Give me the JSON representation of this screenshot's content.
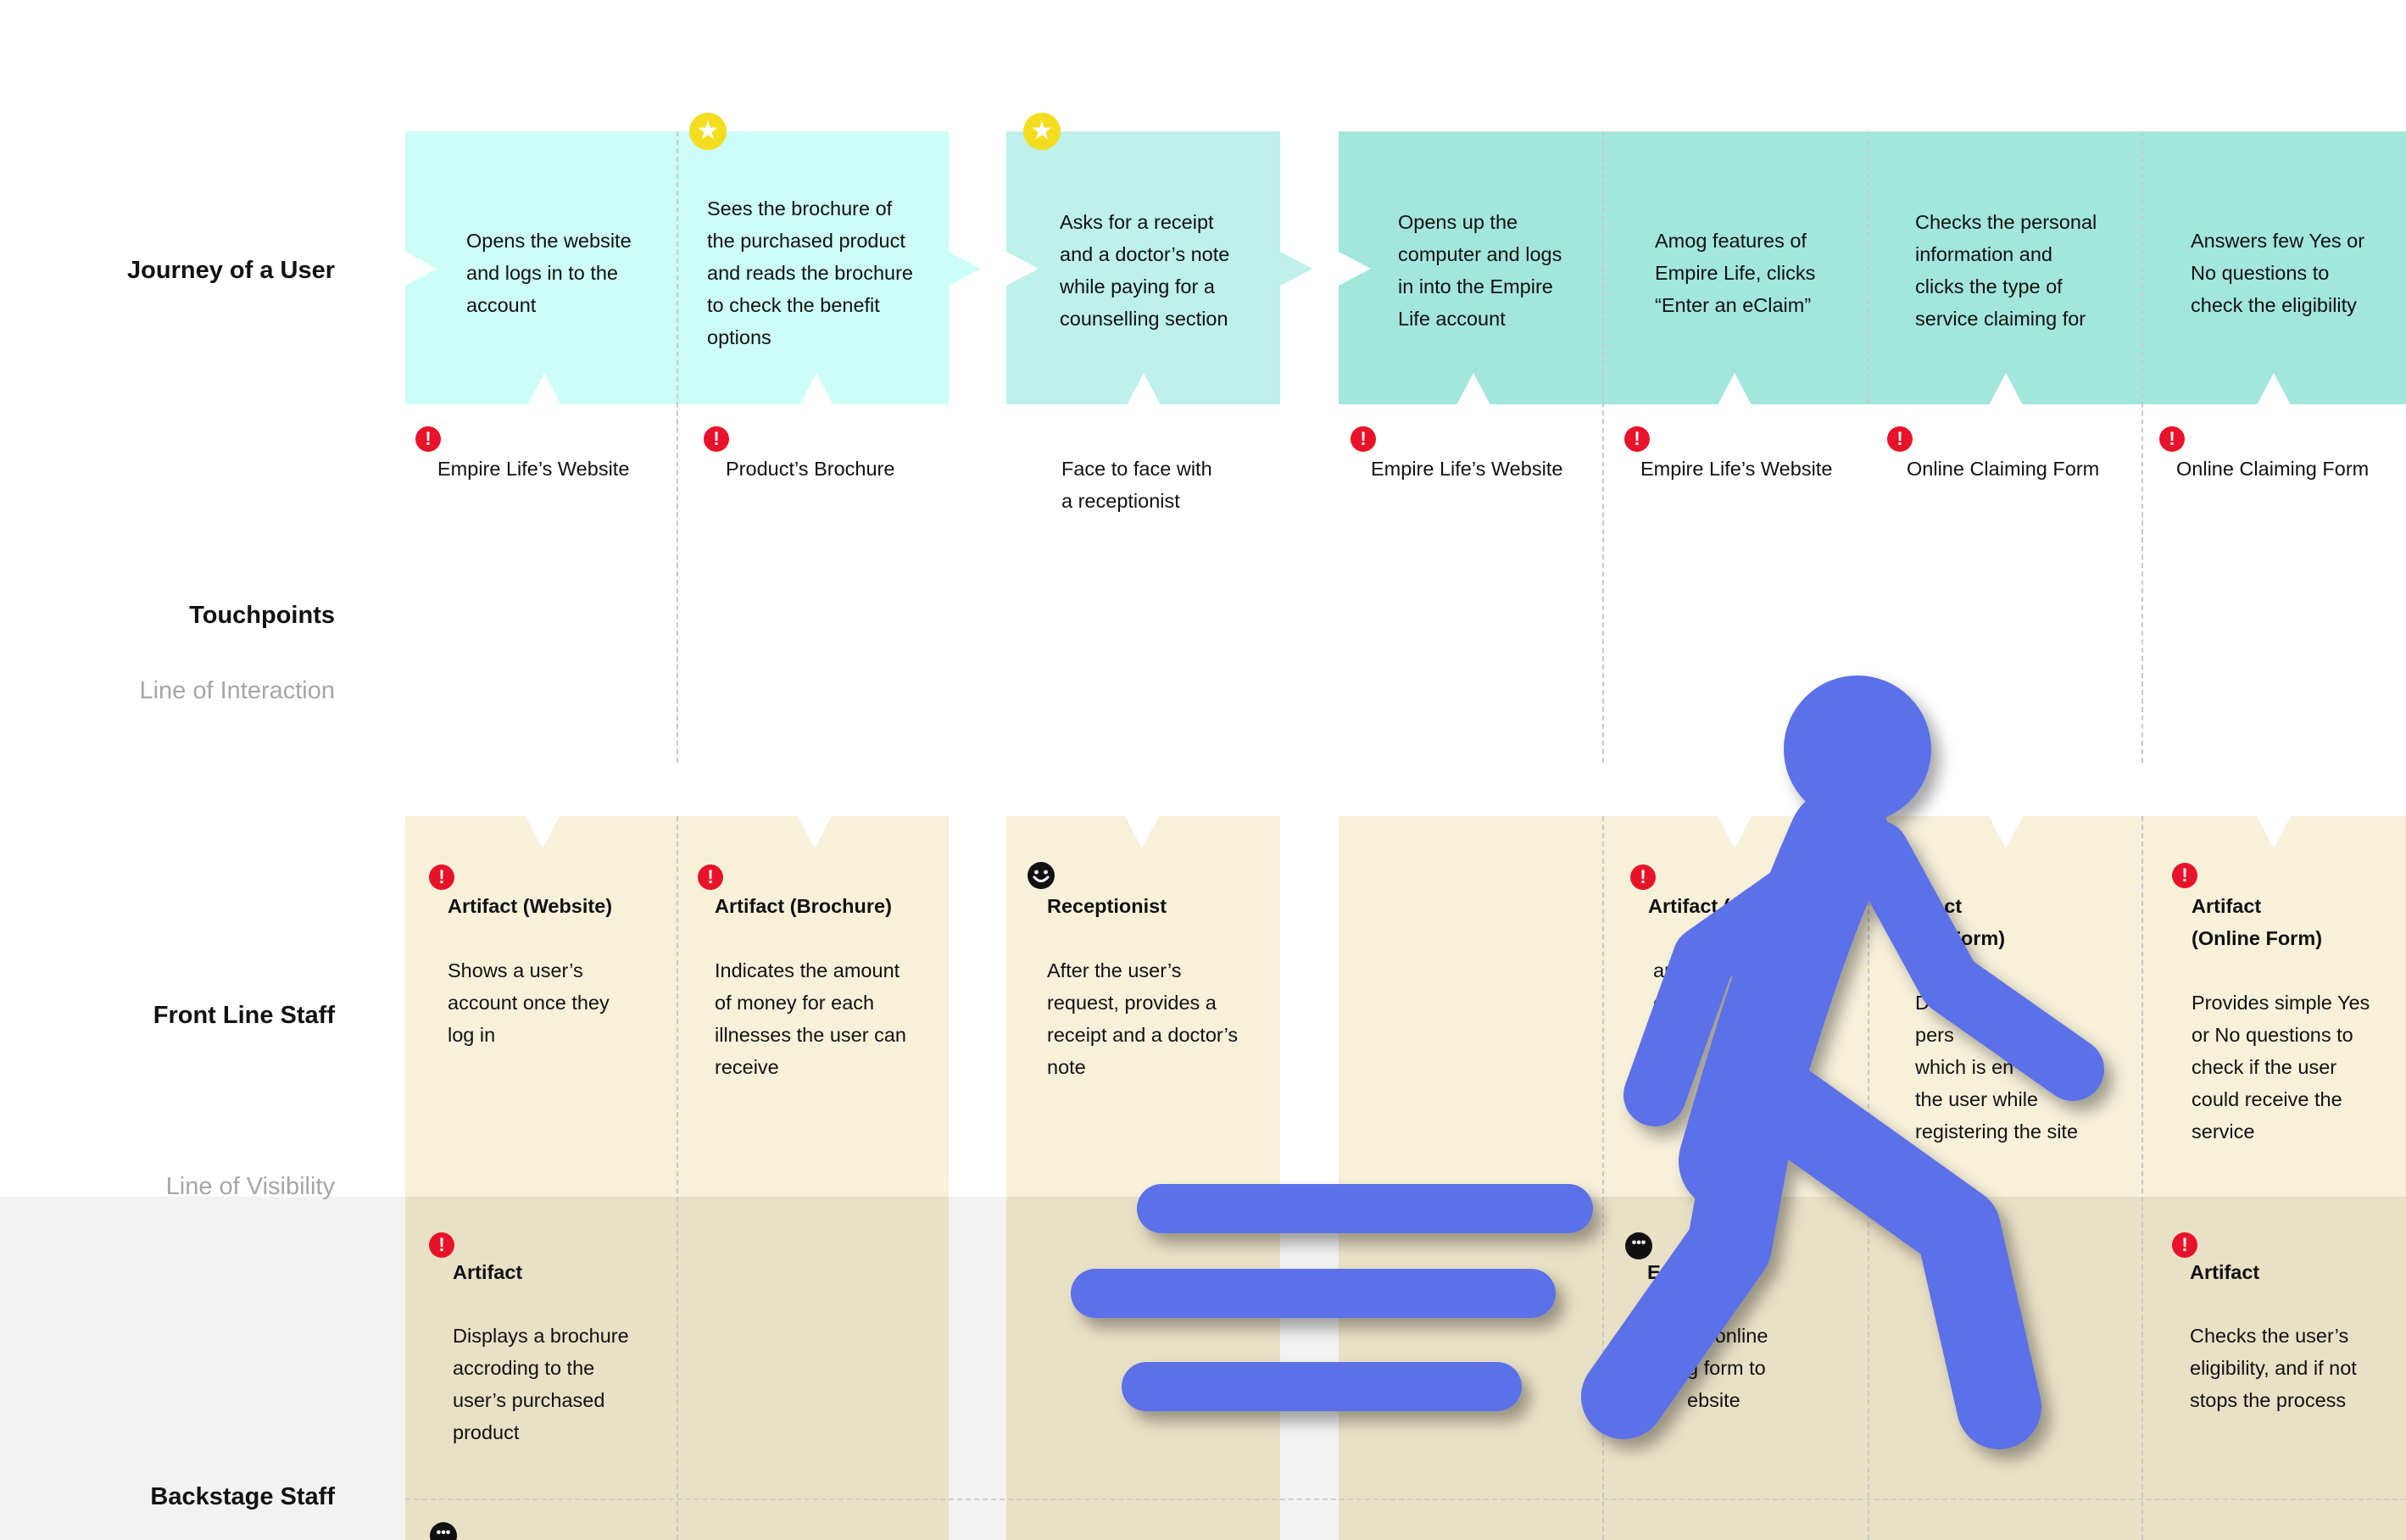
{
  "row_labels": {
    "journey": "Journey of a User",
    "touchpoints": "Touchpoints",
    "line_of_interaction": "Line of Interaction",
    "front_line_staff": "Front Line Staff",
    "line_of_visibility": "Line of Visibility",
    "backstage_staff": "Backstage Staff"
  },
  "journey_steps": [
    "Opens the website\nand logs in to the\naccount",
    "Sees the brochure of\nthe purchased product\nand reads the brochure\nto check the benefit\noptions",
    "Asks for a receipt\nand a doctor’s note\nwhile paying for a\ncounselling section",
    "Opens up the\ncomputer and logs\nin into the Empire\nLife account",
    "Amog features of\nEmpire Life, clicks\n“Enter an eClaim”",
    "Checks the personal\ninformation and\nclicks the type of\nservice claiming for",
    "Answers few Yes or\nNo questions to\ncheck the eligibility"
  ],
  "touchpoints": [
    "Empire Life’s Website",
    "Product’s Brochure",
    "Face to face with\na receptionist",
    "Empire Life’s Website",
    "Empire Life’s Website",
    "Online Claiming Form",
    "Online Claiming Form"
  ],
  "front_line": [
    {
      "title": "Artifact (Website)",
      "body": "Shows a user’s\naccount once they\nlog in"
    },
    {
      "title": "Artifact (Brochure)",
      "body": "Indicates the amount\nof money for each\nillnesses the user can\nreceive"
    },
    {
      "title": "Receptionist",
      "body": "After the user’s\nrequest, provides a\nreceipt and a doctor’s\nnote"
    },
    {
      "title": "Artifact (",
      "body": "an\no clai"
    },
    {
      "title": "tifact\nine Form)",
      "body": "D         he\npers           ation\nwhich is en\nthe user while\nregistering the site"
    },
    {
      "title": "Artifact\n(Online Form)",
      "body": "Provides simple Yes\nor No questions to\ncheck if the user\ncould receive the\nservice"
    }
  ],
  "backstage": [
    {
      "title": "Artifact",
      "body": "Displays a brochure\naccroding to the\nuser’s purchased\nproduct"
    },
    {
      "title": "En",
      "body": "he online\ng form to\nebsite"
    },
    {
      "title": "Artifact",
      "body": "Checks the user’s\neligibility, and if not\nstops the process"
    }
  ],
  "icons": {
    "alert": "!",
    "star": "★",
    "dots": "•••"
  },
  "colors": {
    "journey_light": "#ccfdf6",
    "journey_mid": "#bdf1ea",
    "journey_dark": "#a2e6dc",
    "front_bg": "#f7f1da",
    "backstage_band": "#f2f2f2",
    "alert": "#e8132a",
    "star": "#f4dd1f",
    "runner": "#5b6fe8"
  }
}
